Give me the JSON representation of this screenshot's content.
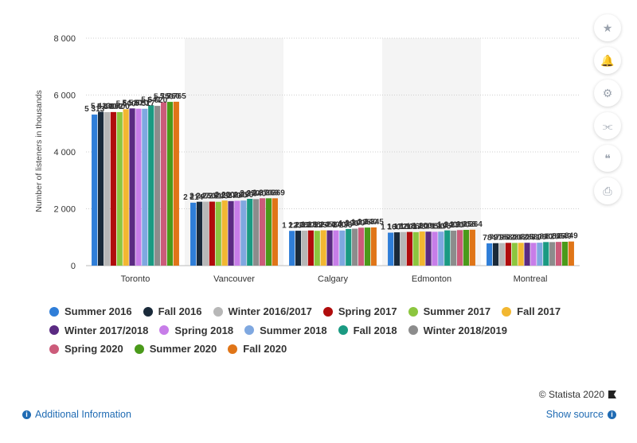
{
  "chart_data": {
    "type": "bar",
    "ylabel": "Number of listeners in thousands",
    "ylim": [
      0,
      8000
    ],
    "yticks": [
      0,
      2000,
      4000,
      6000,
      8000
    ],
    "ytick_labels": [
      "0",
      "2 000",
      "4 000",
      "6 000",
      "8 000"
    ],
    "grid": true,
    "legend_placement": "bottom",
    "categories": [
      "Toronto",
      "Vancouver",
      "Calgary",
      "Edmonton",
      "Montreal"
    ],
    "series": [
      {
        "name": "Summer 2016",
        "color": "#2f7ed8",
        "values": [
          5313,
          2214,
          1223,
          1160,
          784
        ]
      },
      {
        "name": "Fall 2016",
        "color": "#1a2a3a",
        "values": [
          5413,
          2247,
          1228,
          1172,
          791
        ]
      },
      {
        "name": "Winter 2016/2017",
        "color": "#b7b7b7",
        "values": [
          5400,
          2250,
          1230,
          1180,
          795
        ]
      },
      {
        "name": "Spring 2017",
        "color": "#b00c0c",
        "values": [
          5402,
          2251,
          1238,
          1186,
          802
        ]
      },
      {
        "name": "Summer 2017",
        "color": "#8cc63f",
        "values": [
          5400,
          2245,
          1225,
          1178,
          800
        ]
      },
      {
        "name": "Fall 2017",
        "color": "#f2b731",
        "values": [
          5500,
          2290,
          1245,
          1200,
          802
        ]
      },
      {
        "name": "Winter 2017/2018",
        "color": "#5a2a82",
        "values": [
          5530,
          2270,
          1240,
          1195,
          805
        ]
      },
      {
        "name": "Spring 2018",
        "color": "#c77de8",
        "values": [
          5520,
          2280,
          1240,
          1190,
          801
        ]
      },
      {
        "name": "Summer 2018",
        "color": "#7fa8e0",
        "values": [
          5517,
          2290,
          1236,
          1195,
          808
        ]
      },
      {
        "name": "Fall 2018",
        "color": "#1a9a82",
        "values": [
          5641,
          2350,
          1290,
          1240,
          830
        ]
      },
      {
        "name": "Winter 2018/2019",
        "color": "#8c8c8c",
        "values": [
          5620,
          2340,
          1300,
          1230,
          828
        ]
      },
      {
        "name": "Spring 2020",
        "color": "#cc5b7a",
        "values": [
          5750,
          2370,
          1335,
          1250,
          835
        ]
      },
      {
        "name": "Summer 2020",
        "color": "#4a9a1a",
        "values": [
          5760,
          2369,
          1340,
          1258,
          840
        ]
      },
      {
        "name": "Fall 2020",
        "color": "#e07518",
        "values": [
          5765,
          2369,
          1345,
          1264,
          849
        ]
      }
    ],
    "data_labels": {
      "Toronto": [
        "5 313",
        "5 413",
        "5 400",
        "5 402",
        "5 400",
        "5 500",
        "5 530",
        "5 520",
        "5 517",
        "5 641",
        "5 620",
        "5 750",
        "5 760",
        "5 765"
      ],
      "Vancouver": [
        "2 214",
        "2 247",
        "2 250",
        "2 251",
        "2 245",
        "2 290",
        "2 270",
        "2 280",
        "2 290",
        "2 350",
        "2 340",
        "2 370",
        "2 369",
        "2 369"
      ],
      "Calgary": [
        "1 223",
        "1 228",
        "1 230",
        "1 238",
        "1 225",
        "1 245",
        "1 240",
        "1 240",
        "1 236",
        "1 290",
        "1 300",
        "1 335",
        "1 340",
        "1 345"
      ],
      "Edmonton": [
        "1 160",
        "1 172",
        "1 180",
        "1 186",
        "1 178",
        "1 200",
        "1 195",
        "1 190",
        "1 195",
        "1 240",
        "1 230",
        "1 250",
        "1 258",
        "1 264"
      ],
      "Montreal": [
        "784",
        "791",
        "795",
        "802",
        "800",
        "802",
        "805",
        "801",
        "808",
        "830",
        "828",
        "835",
        "840",
        "849"
      ]
    }
  },
  "toolbar": {
    "icons": [
      "star-icon",
      "bell-icon",
      "gear-icon",
      "share-icon",
      "quote-icon",
      "print-icon"
    ]
  },
  "footer": {
    "credit": "© Statista 2020",
    "additional_info": "Additional Information",
    "show_source": "Show source"
  }
}
